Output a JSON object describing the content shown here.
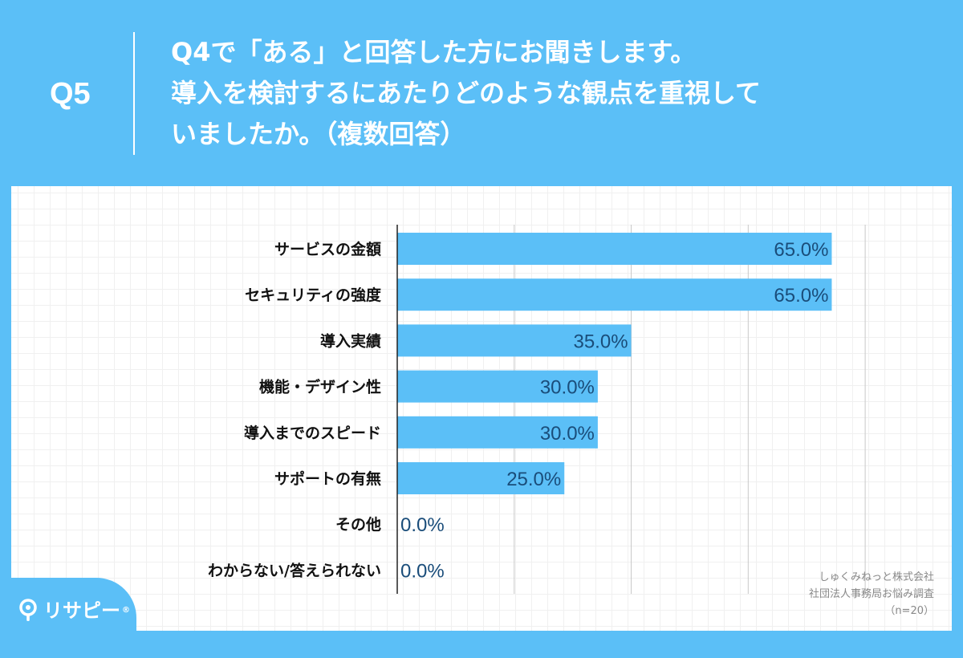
{
  "header": {
    "question_number": "Q5",
    "question_lines": [
      "Q4で「ある」と回答した方にお聞きします。",
      "導入を検討するにあたりどのような観点を重視して",
      "いましたか。（複数回答）"
    ]
  },
  "footnote": {
    "lines": [
      "しゅくみねっと株式会社",
      "社団法人事務局お悩み調査",
      "（n=20）"
    ]
  },
  "logo": {
    "text": "リサピー",
    "suffix": "®",
    "icon": "magnifier-pin-icon"
  },
  "colors": {
    "background": "#5bbff7",
    "bar": "#5bbff7",
    "label_text": "#1a4d7a",
    "category_text": "#111111"
  },
  "chart_data": {
    "type": "bar",
    "orientation": "horizontal",
    "categories": [
      "サービスの金額",
      "セキュリティの強度",
      "導入実績",
      "機能・デザイン性",
      "導入までのスピード",
      "サポートの有無",
      "その他",
      "わからない/答えられない"
    ],
    "values": [
      65.0,
      65.0,
      35.0,
      30.0,
      30.0,
      25.0,
      0.0,
      0.0
    ],
    "value_labels": [
      "65.0%",
      "65.0%",
      "35.0%",
      "30.0%",
      "30.0%",
      "25.0%",
      "0.0%",
      "0.0%"
    ],
    "xlim": [
      0,
      70
    ],
    "grid": true,
    "grid_step": 17.5,
    "title": "",
    "xlabel": "",
    "ylabel": ""
  }
}
